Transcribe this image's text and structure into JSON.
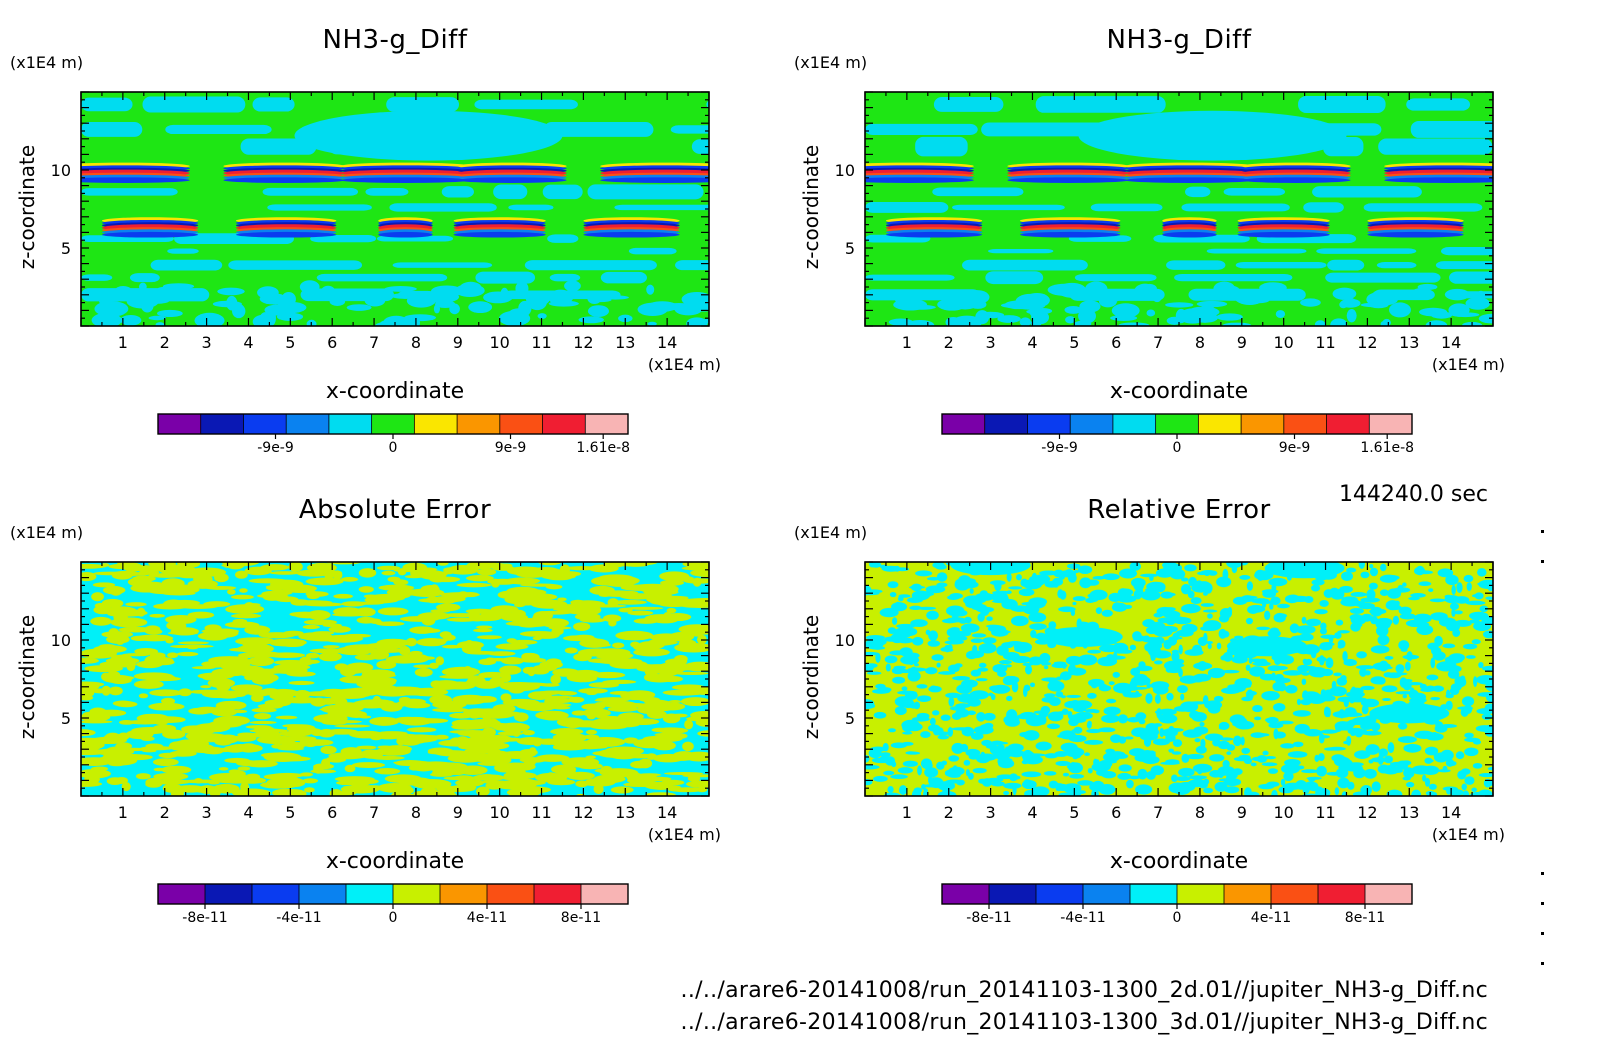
{
  "time_label": "144240.0 sec",
  "footer": {
    "line1": "../../arare6-20141008/run_20141103-1300_2d.01//jupiter_NH3-g_Diff.nc",
    "line2": "../../arare6-20141008/run_20141103-1300_3d.01//jupiter_NH3-g_Diff.nc"
  },
  "chart_data": [
    {
      "type": "heatmap",
      "title": "NH3-g_Diff",
      "xlabel": "x-coordinate",
      "ylabel": "z-coordinate",
      "x_unit": "(x1E4 m)",
      "y_unit": "(x1E4 m)",
      "xlim": [
        0,
        15
      ],
      "ylim": [
        0,
        15
      ],
      "x_ticks": [
        1,
        2,
        3,
        4,
        5,
        6,
        7,
        8,
        9,
        10,
        11,
        12,
        13,
        14
      ],
      "y_ticks": [
        5,
        10
      ],
      "pattern": "banded",
      "colorbar": {
        "colors": [
          "#7a00a8",
          "#0a18b4",
          "#0a3cf0",
          "#0a82f0",
          "#00dcf0",
          "#1ee614",
          "#fae600",
          "#fa9600",
          "#fa5014",
          "#f01e32",
          "#f8b4b4"
        ],
        "tick_labels": [
          "-9e-9",
          "0",
          "9e-9",
          "1.61e-8"
        ],
        "tick_values": [
          -9e-09,
          0,
          9e-09,
          1.61e-08
        ],
        "vmin": -1.8e-08,
        "vmax": 1.8e-08
      }
    },
    {
      "type": "heatmap",
      "title": "NH3-g_Diff",
      "xlabel": "x-coordinate",
      "ylabel": "z-coordinate",
      "x_unit": "(x1E4 m)",
      "y_unit": "(x1E4 m)",
      "xlim": [
        0,
        15
      ],
      "ylim": [
        0,
        15
      ],
      "x_ticks": [
        1,
        2,
        3,
        4,
        5,
        6,
        7,
        8,
        9,
        10,
        11,
        12,
        13,
        14
      ],
      "y_ticks": [
        5,
        10
      ],
      "pattern": "banded",
      "colorbar": {
        "colors": [
          "#7a00a8",
          "#0a18b4",
          "#0a3cf0",
          "#0a82f0",
          "#00dcf0",
          "#1ee614",
          "#fae600",
          "#fa9600",
          "#fa5014",
          "#f01e32",
          "#f8b4b4"
        ],
        "tick_labels": [
          "-9e-9",
          "0",
          "9e-9",
          "1.61e-8"
        ],
        "tick_values": [
          -9e-09,
          0,
          9e-09,
          1.61e-08
        ],
        "vmin": -1.8e-08,
        "vmax": 1.8e-08
      }
    },
    {
      "type": "heatmap",
      "title": "Absolute Error",
      "xlabel": "x-coordinate",
      "ylabel": "z-coordinate",
      "x_unit": "(x1E4 m)",
      "y_unit": "(x1E4 m)",
      "xlim": [
        0,
        15
      ],
      "ylim": [
        0,
        15
      ],
      "x_ticks": [
        1,
        2,
        3,
        4,
        5,
        6,
        7,
        8,
        9,
        10,
        11,
        12,
        13,
        14
      ],
      "y_ticks": [
        5,
        10
      ],
      "pattern": "noise-abs",
      "colorbar": {
        "colors": [
          "#7a00a8",
          "#0a18b4",
          "#0a3cf0",
          "#0a82f0",
          "#00f0f8",
          "#c8f000",
          "#fa9600",
          "#fa5014",
          "#f01e32",
          "#f8b4b4"
        ],
        "tick_labels": [
          "-8e-11",
          "-4e-11",
          "0",
          "4e-11",
          "8e-11"
        ],
        "tick_values": [
          -8e-11,
          -4e-11,
          0,
          4e-11,
          8e-11
        ],
        "vmin": -1e-10,
        "vmax": 1e-10
      }
    },
    {
      "type": "heatmap",
      "title": "Relative Error",
      "xlabel": "x-coordinate",
      "ylabel": "z-coordinate",
      "x_unit": "(x1E4 m)",
      "y_unit": "(x1E4 m)",
      "xlim": [
        0,
        15
      ],
      "ylim": [
        0,
        15
      ],
      "x_ticks": [
        1,
        2,
        3,
        4,
        5,
        6,
        7,
        8,
        9,
        10,
        11,
        12,
        13,
        14
      ],
      "y_ticks": [
        5,
        10
      ],
      "pattern": "noise-rel",
      "colorbar": {
        "colors": [
          "#7a00a8",
          "#0a18b4",
          "#0a3cf0",
          "#0a82f0",
          "#00f0f8",
          "#c8f000",
          "#fa9600",
          "#fa5014",
          "#f01e32",
          "#f8b4b4"
        ],
        "tick_labels": [
          "-8e-11",
          "-4e-11",
          "0",
          "4e-11",
          "8e-11"
        ],
        "tick_values": [
          -8e-11,
          -4e-11,
          0,
          4e-11,
          8e-11
        ],
        "vmin": -1e-10,
        "vmax": 1e-10
      }
    }
  ]
}
